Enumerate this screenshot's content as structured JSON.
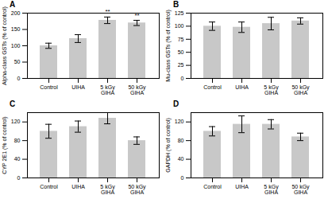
{
  "chart_data": [
    {
      "type": "bar",
      "title": "A",
      "y_label": "Alpha-class GSTs (% of control)",
      "categories": [
        "Control",
        "UIHA",
        "5 kGy\nGIHA",
        "50 kGy\nGIHA"
      ],
      "values": [
        100,
        122,
        178,
        170
      ],
      "errors": [
        8,
        12,
        10,
        8
      ],
      "color": "#c8c8c8",
      "ylim": [
        0,
        200
      ],
      "yticks": [
        0,
        50,
        100,
        150,
        200
      ],
      "annotations": [
        {
          "x": "5 kGy\nGIHA",
          "text": "**"
        },
        {
          "x": "50 kGy\nGIHA",
          "text": "**"
        }
      ]
    },
    {
      "type": "bar",
      "title": "B",
      "y_label": "Mu-class GSTs (% of control)",
      "categories": [
        "Control",
        "UIHA",
        "5 kGy\nGIHA",
        "50 kGy\nGIHA"
      ],
      "values": [
        100,
        98,
        105,
        110
      ],
      "errors": [
        8,
        10,
        12,
        6
      ],
      "color": "#c8c8c8",
      "ylim": [
        0,
        125
      ],
      "yticks": [
        0,
        25,
        50,
        75,
        100,
        125
      ]
    },
    {
      "type": "bar",
      "title": "C",
      "y_label": "CYP 2E1 (% of control)",
      "categories": [
        "Control",
        "UIHA",
        "5 kGy\nGIHA",
        "50 kGy\nGIHA"
      ],
      "values": [
        100,
        110,
        128,
        80
      ],
      "errors": [
        15,
        12,
        12,
        8
      ],
      "color": "#c8c8c8",
      "ylim": [
        0,
        140
      ],
      "yticks": [
        0,
        40,
        80,
        120
      ]
    },
    {
      "type": "bar",
      "title": "D",
      "y_label": "GAPDH (% of control)",
      "categories": [
        "Control",
        "UIHA",
        "5 kGy\nGIHA",
        "50 kGy\nGIHA"
      ],
      "values": [
        100,
        115,
        115,
        88
      ],
      "errors": [
        10,
        18,
        10,
        8
      ],
      "color": "#c8c8c8",
      "ylim": [
        0,
        140
      ],
      "yticks": [
        0,
        40,
        80,
        120
      ]
    }
  ]
}
